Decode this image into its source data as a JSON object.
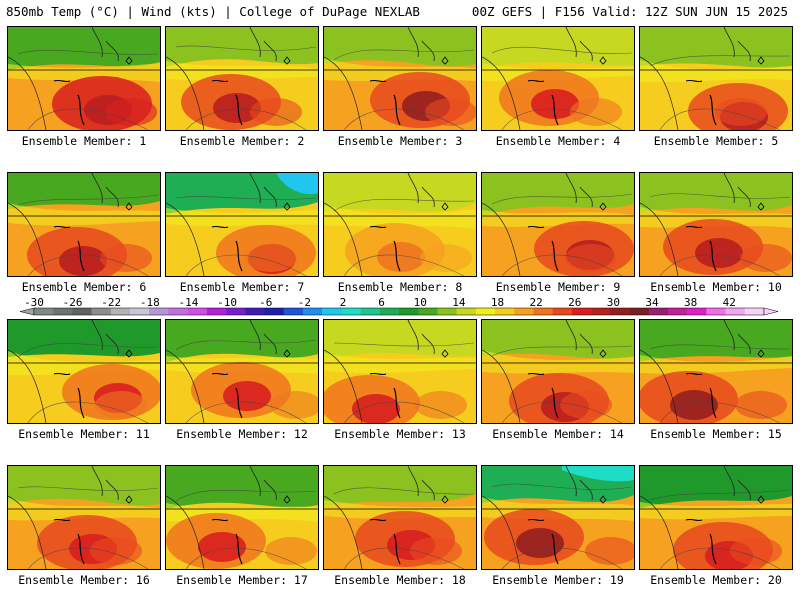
{
  "header": {
    "left": "850mb Temp (°C) | Wind (kts) | College of DuPage NEXLAB",
    "right": "00Z GEFS | F156 Valid: 12Z SUN JUN 15 2025"
  },
  "members": [
    {
      "label": "Ensemble Member: 1"
    },
    {
      "label": "Ensemble Member: 2"
    },
    {
      "label": "Ensemble Member: 3"
    },
    {
      "label": "Ensemble Member: 4"
    },
    {
      "label": "Ensemble Member: 5"
    },
    {
      "label": "Ensemble Member: 6"
    },
    {
      "label": "Ensemble Member: 7"
    },
    {
      "label": "Ensemble Member: 8"
    },
    {
      "label": "Ensemble Member: 9"
    },
    {
      "label": "Ensemble Member: 10"
    },
    {
      "label": "Ensemble Member: 11"
    },
    {
      "label": "Ensemble Member: 12"
    },
    {
      "label": "Ensemble Member: 13"
    },
    {
      "label": "Ensemble Member: 14"
    },
    {
      "label": "Ensemble Member: 15"
    },
    {
      "label": "Ensemble Member: 16"
    },
    {
      "label": "Ensemble Member: 17"
    },
    {
      "label": "Ensemble Member: 18"
    },
    {
      "label": "Ensemble Member: 19"
    },
    {
      "label": "Ensemble Member: 20"
    }
  ],
  "colorbar": {
    "labels": [
      "-30",
      "-26",
      "-22",
      "-18",
      "-14",
      "-10",
      "-6",
      "-2",
      "2",
      "6",
      "10",
      "14",
      "18",
      "22",
      "26",
      "30",
      "34",
      "38",
      "42"
    ],
    "colors": [
      "#7e8a86",
      "#6d7472",
      "#5f6361",
      "#8d8d8d",
      "#b3b3b3",
      "#c6c6d8",
      "#b894d8",
      "#c66ee0",
      "#d14fe6",
      "#b620d9",
      "#7a1fd0",
      "#3d1fb8",
      "#1f1faa",
      "#1f55d8",
      "#1f8ef0",
      "#20c6ee",
      "#1fdcc6",
      "#20c690",
      "#1fae54",
      "#1f9a2a",
      "#48a81f",
      "#8cc21f",
      "#c6d81f",
      "#f0f01f",
      "#f6cc1f",
      "#f6a11f",
      "#f0741f",
      "#e84a1f",
      "#d81f1f",
      "#b81f1f",
      "#951f1f",
      "#7a1f24",
      "#9a1f6e",
      "#c21f9a",
      "#e21fc6",
      "#f06ee8",
      "#f0a8f0",
      "#f6d2f6"
    ]
  }
}
